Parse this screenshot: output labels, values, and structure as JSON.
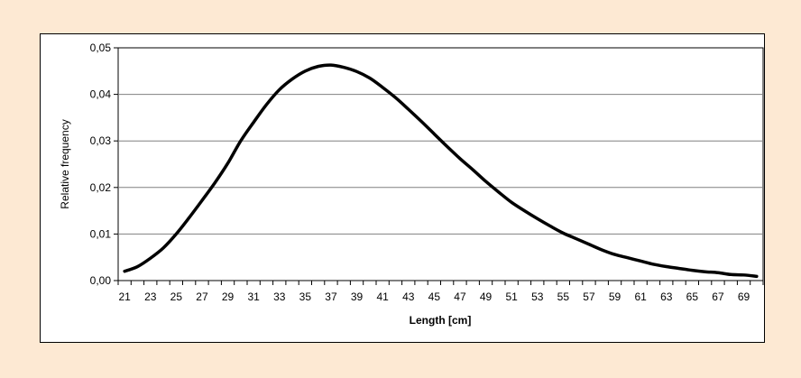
{
  "chart_data": {
    "type": "line",
    "title": "",
    "xlabel": "Length [cm]",
    "ylabel": "Relative frequency",
    "xlim": [
      20.5,
      70.5
    ],
    "ylim": [
      0,
      0.05
    ],
    "x_ticks": [
      21,
      23,
      25,
      27,
      29,
      31,
      33,
      35,
      37,
      39,
      41,
      43,
      45,
      47,
      49,
      51,
      53,
      55,
      57,
      59,
      61,
      63,
      65,
      67,
      69
    ],
    "y_ticks": [
      {
        "value": 0.0,
        "label": "0,00"
      },
      {
        "value": 0.01,
        "label": "0,01"
      },
      {
        "value": 0.02,
        "label": "0,02"
      },
      {
        "value": 0.03,
        "label": "0,03"
      },
      {
        "value": 0.04,
        "label": "0,04"
      },
      {
        "value": 0.05,
        "label": "0,05"
      }
    ],
    "grid": "horizontal",
    "series": [
      {
        "x": [
          21,
          22,
          23,
          24,
          25,
          26,
          27,
          28,
          29,
          30,
          31,
          32,
          33,
          34,
          35,
          36,
          37,
          38,
          39,
          40,
          41,
          42,
          43,
          44,
          45,
          46,
          47,
          48,
          49,
          50,
          51,
          52,
          53,
          54,
          55,
          56,
          57,
          58,
          59,
          60,
          61,
          62,
          63,
          64,
          65,
          66,
          67,
          68,
          69,
          70
        ],
        "y": [
          0.002,
          0.003,
          0.0048,
          0.007,
          0.01,
          0.0135,
          0.0172,
          0.021,
          0.0252,
          0.03,
          0.034,
          0.0378,
          0.041,
          0.0433,
          0.045,
          0.046,
          0.0463,
          0.0458,
          0.0449,
          0.0435,
          0.0415,
          0.0393,
          0.0368,
          0.0342,
          0.0315,
          0.0288,
          0.0262,
          0.0238,
          0.0213,
          0.019,
          0.0168,
          0.015,
          0.0133,
          0.0117,
          0.0102,
          0.009,
          0.0078,
          0.0066,
          0.0056,
          0.0049,
          0.0042,
          0.0035,
          0.003,
          0.0026,
          0.0022,
          0.0019,
          0.0017,
          0.0013,
          0.0012,
          0.0009
        ]
      }
    ]
  },
  "colors": {
    "page_background": "#fde9d3",
    "chart_background": "#ffffff",
    "line": "#000000",
    "grid": "#808080"
  }
}
